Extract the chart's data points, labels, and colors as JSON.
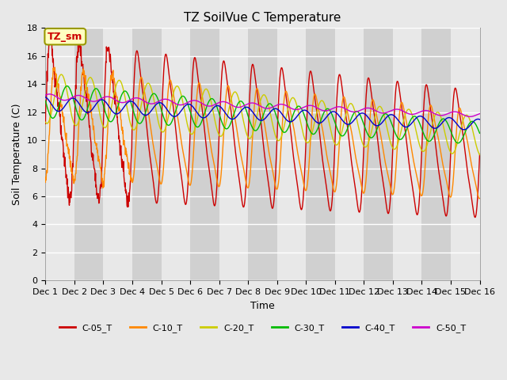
{
  "title": "TZ SoilVue C Temperature",
  "xlabel": "Time",
  "ylabel": "Soil Temperature (C)",
  "ylim": [
    0,
    18
  ],
  "yticks": [
    0,
    2,
    4,
    6,
    8,
    10,
    12,
    14,
    16,
    18
  ],
  "annotation_text": "TZ_sm",
  "annotation_color": "#cc0000",
  "annotation_box_facecolor": "#ffffc0",
  "annotation_box_edgecolor": "#999900",
  "legend_entries": [
    "C-05_T",
    "C-10_T",
    "C-20_T",
    "C-30_T",
    "C-40_T",
    "C-50_T"
  ],
  "line_colors": [
    "#cc0000",
    "#ff8800",
    "#cccc00",
    "#00bb00",
    "#0000cc",
    "#cc00cc"
  ],
  "num_days": 15,
  "fig_bg": "#e8e8e8",
  "plot_bg": "#e0e0e0",
  "band_light": "#e8e8e8",
  "band_dark": "#d0d0d0"
}
